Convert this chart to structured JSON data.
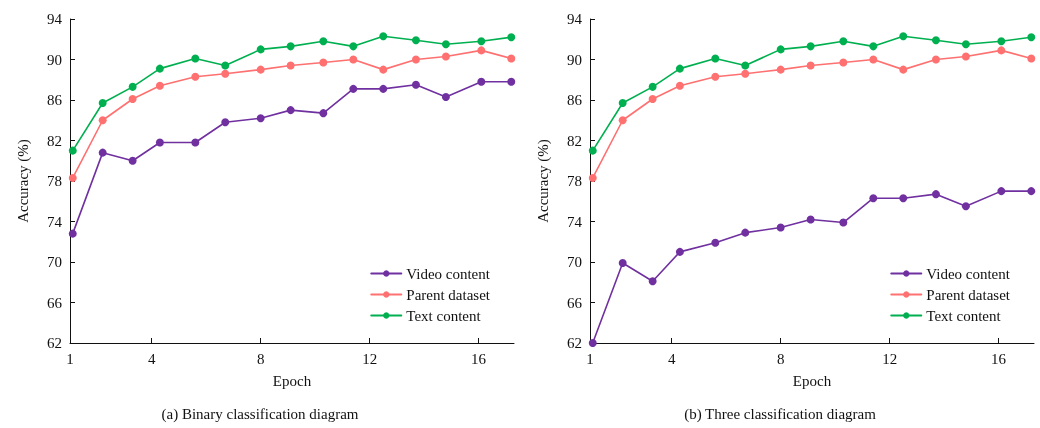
{
  "chart_data": [
    {
      "type": "line",
      "title": "(a) Binary classification diagram",
      "xlabel": "Epoch",
      "ylabel": "Accuracy (%)",
      "x": [
        1.1,
        2.2,
        3.3,
        4.3,
        5.6,
        6.7,
        8.0,
        9.1,
        10.3,
        11.4,
        12.5,
        13.7,
        14.8,
        16.1,
        17.2
      ],
      "xlim": [
        1,
        17.3
      ],
      "xticks": [
        1,
        4,
        8,
        12,
        16
      ],
      "ylim": [
        62,
        94
      ],
      "yticks": [
        62,
        66,
        70,
        74,
        78,
        82,
        86,
        90,
        94
      ],
      "grid": false,
      "legend": "bottom right",
      "marker": "circle",
      "line_style": "solid",
      "series": [
        {
          "name": "Video content",
          "color": "#7030a0",
          "values": [
            72.8,
            80.8,
            80.0,
            81.8,
            81.8,
            83.8,
            84.2,
            85.0,
            84.7,
            87.1,
            87.1,
            87.5,
            86.3,
            87.8,
            87.8
          ]
        },
        {
          "name": "Parent dataset",
          "color": "#ff7070",
          "values": [
            78.3,
            84.0,
            86.1,
            87.4,
            88.3,
            88.6,
            89.0,
            89.4,
            89.7,
            90.0,
            89.0,
            90.0,
            90.3,
            90.9,
            90.1
          ]
        },
        {
          "name": "Text content",
          "color": "#00b050",
          "values": [
            81.0,
            85.7,
            87.3,
            89.1,
            90.1,
            89.4,
            91.0,
            91.3,
            91.8,
            91.3,
            92.3,
            91.9,
            91.5,
            91.8,
            92.2
          ]
        }
      ]
    },
    {
      "type": "line",
      "title": "(b) Three classification diagram",
      "xlabel": "Epoch",
      "ylabel": "Accuracy (%)",
      "x": [
        1.1,
        2.2,
        3.3,
        4.3,
        5.6,
        6.7,
        8.0,
        9.1,
        10.3,
        11.4,
        12.5,
        13.7,
        14.8,
        16.1,
        17.2
      ],
      "xlim": [
        1,
        17.3
      ],
      "xticks": [
        1,
        4,
        8,
        12,
        16
      ],
      "ylim": [
        62,
        94
      ],
      "yticks": [
        62,
        66,
        70,
        74,
        78,
        82,
        86,
        90,
        94
      ],
      "grid": false,
      "legend": "bottom right",
      "marker": "circle",
      "line_style": "solid",
      "series": [
        {
          "name": "Video content",
          "color": "#7030a0",
          "values": [
            62.0,
            69.9,
            68.1,
            71.0,
            71.9,
            72.9,
            73.4,
            74.2,
            73.9,
            76.3,
            76.3,
            76.7,
            75.5,
            77.0,
            77.0
          ]
        },
        {
          "name": "Parent dataset",
          "color": "#ff7070",
          "values": [
            78.3,
            84.0,
            86.1,
            87.4,
            88.3,
            88.6,
            89.0,
            89.4,
            89.7,
            90.0,
            89.0,
            90.0,
            90.3,
            90.9,
            90.1
          ]
        },
        {
          "name": "Text content",
          "color": "#00b050",
          "values": [
            81.0,
            85.7,
            87.3,
            89.1,
            90.1,
            89.4,
            91.0,
            91.3,
            91.8,
            91.3,
            92.3,
            91.9,
            91.5,
            91.8,
            92.2
          ]
        }
      ]
    }
  ]
}
